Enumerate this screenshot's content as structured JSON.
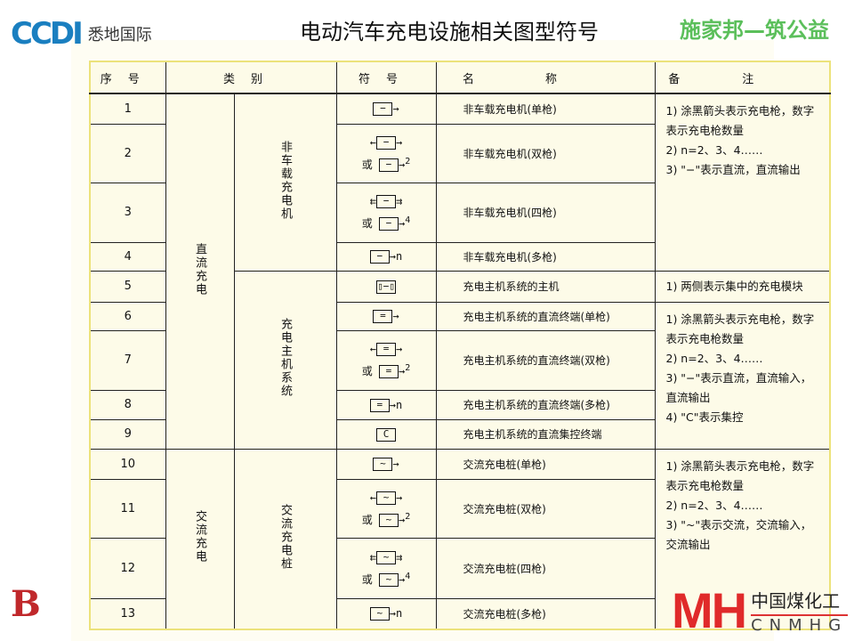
{
  "header": {
    "title": "电动汽车充电设施相关图型符号",
    "left_logo": "CCDI",
    "left_logo_text": "悉地国际",
    "right_brand": "施家邦—筑公益"
  },
  "table": {
    "headers": [
      "序号",
      "类别",
      "符号",
      "名称",
      "备注"
    ],
    "categories": [
      {
        "label": "直流充电"
      },
      {
        "label": "交流充电"
      }
    ],
    "subcategories": [
      {
        "label": "非车载充电机"
      },
      {
        "label": "充电主机系统"
      },
      {
        "label": "交流充电桩"
      }
    ],
    "rows": [
      {
        "no": "1",
        "name": "非车载充电机(单枪)",
        "sym": {
          "l1": "",
          "g": "−",
          "r": "→",
          "alt": false
        }
      },
      {
        "no": "2",
        "name": "非车载充电机(双枪)",
        "sym": {
          "l1": "←",
          "g": "−",
          "r": "→",
          "alt": true,
          "alt_prefix": "或",
          "count": "2"
        }
      },
      {
        "no": "3",
        "name": "非车载充电机(四枪)",
        "sym": {
          "l1": "⇇",
          "g": "−",
          "r": "⇉",
          "alt": true,
          "alt_prefix": "或",
          "count": "4"
        }
      },
      {
        "no": "4",
        "name": "非车载充电机(多枪)",
        "sym": {
          "l1": "",
          "g": "−",
          "r": "→n",
          "alt": false
        }
      },
      {
        "no": "5",
        "name": "充电主机系统的主机",
        "sym": {
          "l1": "",
          "g": "▯−▯",
          "r": "",
          "alt": false
        }
      },
      {
        "no": "6",
        "name": "充电主机系统的直流终端(单枪)",
        "sym": {
          "l1": "",
          "g": "=",
          "r": "→",
          "alt": false
        }
      },
      {
        "no": "7",
        "name": "充电主机系统的直流终端(双枪)",
        "sym": {
          "l1": "←",
          "g": "=",
          "r": "→",
          "alt": true,
          "alt_prefix": "或",
          "count": "2"
        }
      },
      {
        "no": "8",
        "name": "充电主机系统的直流终端(多枪)",
        "sym": {
          "l1": "",
          "g": "=",
          "r": "→n",
          "alt": false
        }
      },
      {
        "no": "9",
        "name": "充电主机系统的直流集控终端",
        "sym": {
          "l1": "",
          "g": "C",
          "r": "",
          "alt": false
        }
      },
      {
        "no": "10",
        "name": "交流充电桩(单枪)",
        "sym": {
          "l1": "",
          "g": "~",
          "r": "→",
          "alt": false
        }
      },
      {
        "no": "11",
        "name": "交流充电桩(双枪)",
        "sym": {
          "l1": "←",
          "g": "~",
          "r": "→",
          "alt": true,
          "alt_prefix": "或",
          "count": "2"
        }
      },
      {
        "no": "12",
        "name": "交流充电桩(四枪)",
        "sym": {
          "l1": "⇇",
          "g": "~",
          "r": "⇉",
          "alt": true,
          "alt_prefix": "或",
          "count": "4"
        }
      },
      {
        "no": "13",
        "name": "交流充电桩(多枪)",
        "sym": {
          "l1": "",
          "g": "~",
          "r": "→n",
          "alt": false
        }
      }
    ],
    "notes": [
      [
        "1) 涂黑箭头表示充电枪，数字表示充电枪数量",
        "2) n=2、3、4……",
        "3) \"−\"表示直流，直流输出"
      ],
      [
        "1) 两侧表示集中的充电模块"
      ],
      [
        "1) 涂黑箭头表示充电枪，数字表示充电枪数量",
        "2) n=2、3、4……",
        "3) \"−\"表示直流，直流输入，直流输出",
        "4) \"C\"表示集控"
      ],
      [
        "1) 涂黑箭头表示充电枪，数字表示充电枪数量",
        "2) n=2、3、4……",
        "3) \"~\"表示交流，交流输入，交流输出"
      ]
    ]
  },
  "footer": {
    "left_logo": "B",
    "right_logo_mark": "MH",
    "right_logo_cn": "中国煤化工",
    "right_logo_en": "CNMHG"
  },
  "colors": {
    "table_border": "#ece27a",
    "brand_green": "#5bbf5b",
    "ccdi_blue": "#1a7fc0",
    "cnmhg_red": "#e02a2a"
  }
}
